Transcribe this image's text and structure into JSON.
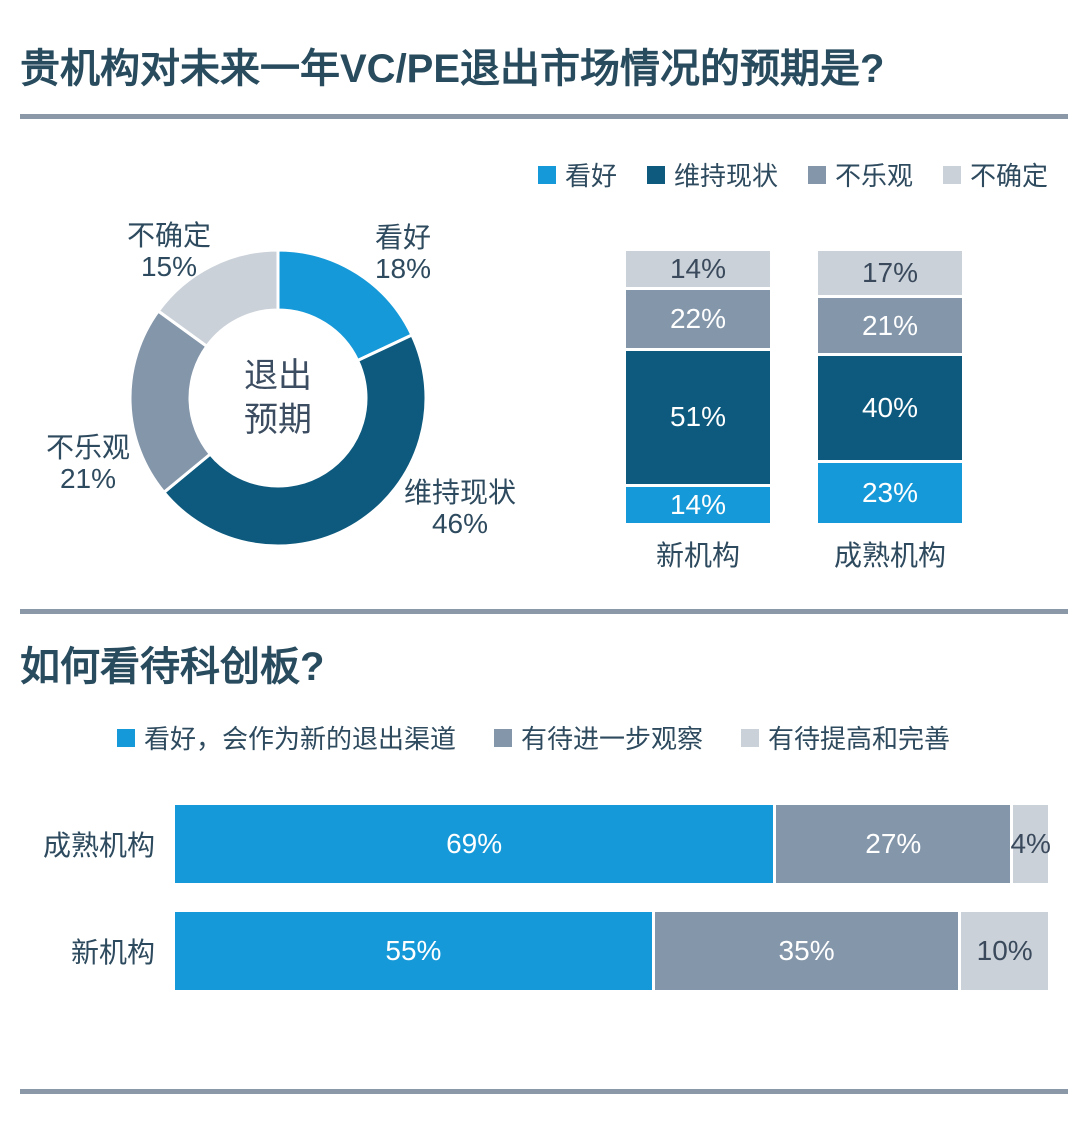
{
  "palette": {
    "bright_blue": "#1699D8",
    "dark_blue": "#0D5A7E",
    "slate_gray": "#8496AA",
    "light_gray": "#CBD1D9",
    "text_dark": "#2E4A5E",
    "divider_gray": "#8B98A8",
    "background": "#FFFFFF"
  },
  "section_exit": {
    "title": "贵机构对未来一年VC/PE退出市场情况的预期是?",
    "legend": [
      {
        "label": "看好",
        "color": "#1699D8"
      },
      {
        "label": "维持现状",
        "color": "#0D5A7E"
      },
      {
        "label": "不乐观",
        "color": "#8496AA"
      },
      {
        "label": "不确定",
        "color": "#CBD1D9"
      }
    ]
  },
  "section_star": {
    "title": "如何看待科创板?",
    "legend": [
      {
        "label": "看好，会作为新的退出渠道",
        "color": "#1699D8"
      },
      {
        "label": "有待进一步观察",
        "color": "#8496AA"
      },
      {
        "label": "有待提高和完善",
        "color": "#CBD1D9"
      }
    ]
  },
  "chart_data": [
    {
      "type": "pie",
      "subtype": "donut",
      "center_label": [
        "退出",
        "预期"
      ],
      "unit": "%",
      "start_angle_deg": 0,
      "direction": "clockwise",
      "slices": [
        {
          "label": "看好",
          "value": 18,
          "color": "#1699D8"
        },
        {
          "label": "维持现状",
          "value": 46,
          "color": "#0D5A7E"
        },
        {
          "label": "不乐观",
          "value": 21,
          "color": "#8496AA"
        },
        {
          "label": "不确定",
          "value": 15,
          "color": "#CBD1D9"
        }
      ]
    },
    {
      "type": "bar",
      "subtype": "stacked-column",
      "unit": "%",
      "data_labels": true,
      "stack_order": "first-series-at-bottom",
      "categories": [
        "新机构",
        "成熟机构"
      ],
      "series": [
        {
          "name": "看好",
          "color": "#1699D8",
          "values": [
            14,
            23
          ]
        },
        {
          "name": "维持现状",
          "color": "#0D5A7E",
          "values": [
            51,
            40
          ]
        },
        {
          "name": "不乐观",
          "color": "#8496AA",
          "values": [
            22,
            21
          ]
        },
        {
          "name": "不确定",
          "color": "#CBD1D9",
          "values": [
            14,
            17
          ]
        }
      ]
    },
    {
      "type": "bar",
      "subtype": "stacked-horizontal",
      "unit": "%",
      "data_labels": true,
      "categories": [
        "成熟机构",
        "新机构"
      ],
      "series": [
        {
          "name": "看好，会作为新的退出渠道",
          "color": "#1699D8",
          "values": [
            69,
            55
          ]
        },
        {
          "name": "有待进一步观察",
          "color": "#8496AA",
          "values": [
            27,
            35
          ]
        },
        {
          "name": "有待提高和完善",
          "color": "#CBD1D9",
          "values": [
            4,
            10
          ]
        }
      ]
    }
  ]
}
